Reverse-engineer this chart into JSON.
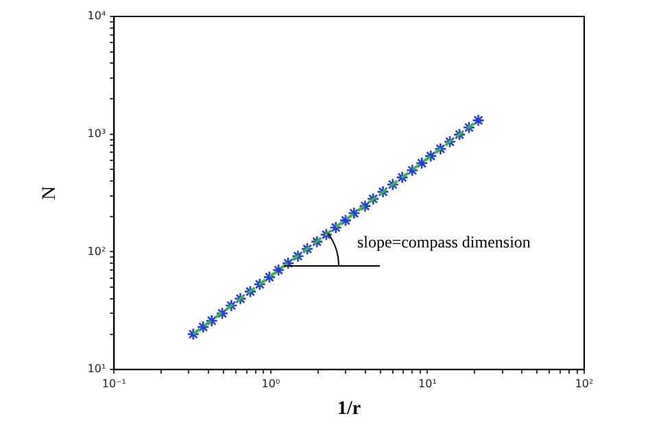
{
  "chart_data": {
    "type": "scatter",
    "xlabel": "1/r",
    "ylabel": "N",
    "log": "xy",
    "grid": false,
    "legend": false,
    "marker": "cross",
    "xlim": [
      0.1,
      100
    ],
    "ylim": [
      10,
      10000
    ],
    "xticks": [
      {
        "value": 0.1,
        "label": "10⁻¹"
      },
      {
        "value": 0.2,
        "label": null
      },
      {
        "value": 0.3,
        "label": null
      },
      {
        "value": 0.4,
        "label": null
      },
      {
        "value": 0.5,
        "label": null
      },
      {
        "value": 0.6,
        "label": null
      },
      {
        "value": 0.7,
        "label": null
      },
      {
        "value": 0.8,
        "label": null
      },
      {
        "value": 0.9,
        "label": null
      },
      {
        "value": 1,
        "label": "10⁰"
      },
      {
        "value": 2,
        "label": null
      },
      {
        "value": 3,
        "label": null
      },
      {
        "value": 4,
        "label": null
      },
      {
        "value": 5,
        "label": null
      },
      {
        "value": 6,
        "label": null
      },
      {
        "value": 7,
        "label": null
      },
      {
        "value": 8,
        "label": null
      },
      {
        "value": 9,
        "label": null
      },
      {
        "value": 10,
        "label": "10¹"
      },
      {
        "value": 20,
        "label": null
      },
      {
        "value": 30,
        "label": null
      },
      {
        "value": 40,
        "label": null
      },
      {
        "value": 50,
        "label": null
      },
      {
        "value": 60,
        "label": null
      },
      {
        "value": 70,
        "label": null
      },
      {
        "value": 80,
        "label": null
      },
      {
        "value": 90,
        "label": null
      },
      {
        "value": 100,
        "label": "10²"
      }
    ],
    "yticks": [
      {
        "value": 10,
        "label": "10¹"
      },
      {
        "value": 20,
        "label": null
      },
      {
        "value": 30,
        "label": null
      },
      {
        "value": 40,
        "label": null
      },
      {
        "value": 50,
        "label": null
      },
      {
        "value": 60,
        "label": null
      },
      {
        "value": 70,
        "label": null
      },
      {
        "value": 80,
        "label": null
      },
      {
        "value": 90,
        "label": null
      },
      {
        "value": 100,
        "label": "10²"
      },
      {
        "value": 200,
        "label": null
      },
      {
        "value": 300,
        "label": null
      },
      {
        "value": 400,
        "label": null
      },
      {
        "value": 500,
        "label": null
      },
      {
        "value": 600,
        "label": null
      },
      {
        "value": 700,
        "label": null
      },
      {
        "value": 800,
        "label": null
      },
      {
        "value": 900,
        "label": null
      },
      {
        "value": 1000,
        "label": "10³"
      },
      {
        "value": 2000,
        "label": null
      },
      {
        "value": 3000,
        "label": null
      },
      {
        "value": 4000,
        "label": null
      },
      {
        "value": 5000,
        "label": null
      },
      {
        "value": 6000,
        "label": null
      },
      {
        "value": 7000,
        "label": null
      },
      {
        "value": 8000,
        "label": null
      },
      {
        "value": 9000,
        "label": null
      },
      {
        "value": 10000,
        "label": "10⁴"
      }
    ],
    "series": [
      {
        "type": "line",
        "color": "#3cb44b",
        "line_style": "dashed",
        "marker": "none",
        "x": [
          0.32,
          21.1
        ],
        "values": [
          20,
          1310
        ]
      },
      {
        "color": "#1f3fd8",
        "x": [
          0.32,
          0.37,
          0.42,
          0.49,
          0.56,
          0.64,
          0.74,
          0.85,
          0.98,
          1.12,
          1.29,
          1.49,
          1.71,
          1.97,
          2.26,
          2.6,
          3.0,
          3.4,
          4.0,
          4.5,
          5.2,
          6.0,
          6.9,
          8.0,
          9.2,
          10.5,
          12.1,
          13.9,
          16.0,
          18.4,
          21.1
        ],
        "values": [
          20,
          23,
          26,
          30,
          35,
          40,
          46,
          53,
          61,
          70,
          80,
          92,
          106,
          122,
          140,
          161,
          185,
          213,
          245,
          282,
          324,
          373,
          429,
          493,
          567,
          652,
          750,
          862,
          992,
          1140,
          1310
        ]
      }
    ],
    "annotations": [
      {
        "text": "slope=compass dimension",
        "x": 1.2,
        "y": 75
      }
    ]
  }
}
